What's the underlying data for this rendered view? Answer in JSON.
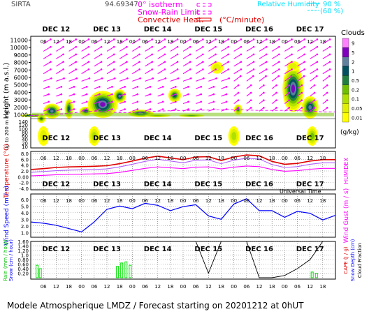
{
  "header": {
    "station": "SIRTA",
    "coord": "94.69347",
    "isotherm_label": "0° isotherm",
    "snow_rain_label": "Snow-Rain Limit",
    "convective_label": "Convective Heat.",
    "convective_unit": "(°C/minute)",
    "rh_label": "Relative Humidity",
    "rh_90": "90 %",
    "rh_60": "(60 %)",
    "clouds_label": "Clouds",
    "cloud_unit": "(g/kg)"
  },
  "days": [
    "DEC 12",
    "DEC 13",
    "DEC 14",
    "DEC 15",
    "DEC 16",
    "DEC 17"
  ],
  "hours": [
    "06",
    "12",
    "18",
    "00"
  ],
  "footer": {
    "universal_time": "Universal Time",
    "caption": "Modele Atmospherique LMDZ / Forecast starting on 20201212 at 0hUT"
  },
  "colors": {
    "pink": "#ff00ff",
    "cyan": "#00e0ff",
    "red": "#e00000",
    "violet": "#b060ff",
    "blue": "#0000ff",
    "green": "#00e000",
    "black": "#000000",
    "cloud_scale": [
      "#ffff00",
      "#e0f000",
      "#b0e000",
      "#70c000",
      "#208040",
      "#005060",
      "#6080a0",
      "#8000c0",
      "#ff80ff"
    ]
  },
  "chart_data": [
    {
      "type": "heatmap",
      "name": "Cloud water and wind vs height",
      "ylabel": "Height (m a.s.l.)",
      "ylabel_low": "Up to 200 m a.g.l.",
      "yticks": [
        1000,
        2000,
        3000,
        4000,
        5000,
        6000,
        7000,
        8000,
        9000,
        10000,
        11000
      ],
      "yticks_low": [
        140,
        120,
        100,
        80,
        60,
        40,
        20,
        10
      ],
      "colorbar_label": "Clouds",
      "colorbar_ticks": [
        "9",
        "5",
        "2",
        "1",
        "0.5",
        "0.2",
        "0.1",
        "0.05",
        "0.01"
      ],
      "colorbar_unit": "(g/kg)",
      "x_start": "2020-12-12 00:00",
      "x_end": "2020-12-17 24:00",
      "clouds": [
        {
          "t": 1.2,
          "z": 900,
          "half_width_h": 6,
          "half_height_m": 200,
          "level": 8
        },
        {
          "t": 5.0,
          "z": 500,
          "half_width_h": 2,
          "half_height_m": 600,
          "level": 4
        },
        {
          "t": 10.0,
          "z": 1500,
          "half_width_h": 4,
          "half_height_m": 1000,
          "level": 6
        },
        {
          "t": 18.0,
          "z": 1800,
          "half_width_h": 2,
          "half_height_m": 1300,
          "level": 5
        },
        {
          "t": 26.0,
          "z": 1500,
          "half_width_h": 3,
          "half_height_m": 600,
          "level": 5
        },
        {
          "t": 34.0,
          "z": 2400,
          "half_width_h": 7,
          "half_height_m": 1800,
          "level": 7
        },
        {
          "t": 42.0,
          "z": 3500,
          "half_width_h": 3,
          "half_height_m": 900,
          "level": 6
        },
        {
          "t": 52.0,
          "z": 1200,
          "half_width_h": 6,
          "half_height_m": 500,
          "level": 6
        },
        {
          "t": 60.0,
          "z": 900,
          "half_width_h": 6,
          "half_height_m": 200,
          "level": 3
        },
        {
          "t": 68.0,
          "z": 3600,
          "half_width_h": 3,
          "half_height_m": 900,
          "level": 5
        },
        {
          "t": 76.0,
          "z": 900,
          "half_width_h": 6,
          "half_height_m": 150,
          "level": 4
        },
        {
          "t": 88.0,
          "z": 7300,
          "half_width_h": 3,
          "half_height_m": 800,
          "level": 1
        },
        {
          "t": 98.0,
          "z": 1700,
          "half_width_h": 2,
          "half_height_m": 700,
          "level": 4
        },
        {
          "t": 124.0,
          "z": 4500,
          "half_width_h": 5,
          "half_height_m": 3100,
          "level": 7
        },
        {
          "t": 124.0,
          "z": 7500,
          "half_width_h": 3,
          "half_height_m": 700,
          "level": 1
        },
        {
          "t": 132.0,
          "z": 2000,
          "half_width_h": 4,
          "half_height_m": 1500,
          "level": 6
        }
      ],
      "low_clouds": [
        {
          "t": 6.0,
          "level": 1
        },
        {
          "t": 30.0,
          "level": 2
        },
        {
          "t": 96.0,
          "level": 2
        },
        {
          "t": 133.0,
          "level": 3
        }
      ],
      "isotherm_m": {
        "t": [
          0,
          6,
          12,
          18,
          24,
          30,
          36,
          42,
          48,
          54,
          60,
          66,
          72,
          78,
          84,
          90,
          96,
          102,
          108,
          114,
          120,
          126,
          132,
          138,
          144
        ],
        "z": [
          900,
          1000,
          1100,
          1200,
          1400,
          1500,
          1400,
          1300,
          1300,
          1400,
          1500,
          1550,
          1600,
          1600,
          1650,
          1700,
          1700,
          1650,
          1600,
          1600,
          1600,
          1550,
          1500,
          1400,
          1400
        ]
      }
    },
    {
      "type": "line",
      "name": "Temperature",
      "ylabel": "Temperature (°C)",
      "ylabel_right": "HUMIDEX",
      "yticks": [
        -4.0,
        -2.0,
        0.0,
        2.0,
        4.0,
        6.0,
        8.0
      ],
      "ylim": [
        -4.0,
        8.0
      ],
      "t": [
        0,
        6,
        12,
        18,
        24,
        30,
        36,
        42,
        48,
        54,
        60,
        66,
        72,
        78,
        84,
        90,
        96,
        102,
        108,
        114,
        120,
        126,
        132,
        138,
        144
      ],
      "series": [
        {
          "name": "",
          "color": "#e00000",
          "values": [
            2.5,
            2.8,
            3.2,
            3.4,
            3.5,
            3.6,
            3.8,
            4.5,
            5.4,
            6.4,
            7.1,
            6.5,
            5.9,
            6.8,
            6.9,
            5.6,
            6.8,
            7.5,
            7.2,
            5.3,
            4.3,
            4.6,
            5.4,
            5.9,
            5.9
          ]
        },
        {
          "name": "",
          "color": "#b060ff",
          "values": [
            1.5,
            1.8,
            2.1,
            2.3,
            2.4,
            2.5,
            2.7,
            3.4,
            4.3,
            5.3,
            6.0,
            5.4,
            4.8,
            5.7,
            5.8,
            4.5,
            5.7,
            6.4,
            6.1,
            4.2,
            3.2,
            3.5,
            4.3,
            4.8,
            4.8
          ]
        },
        {
          "name": "",
          "color": "#ff00ff",
          "values": [
            0.3,
            0.5,
            0.7,
            0.8,
            0.9,
            1.0,
            1.1,
            1.5,
            2.2,
            2.9,
            3.4,
            3.1,
            2.8,
            3.3,
            3.4,
            2.7,
            3.3,
            3.7,
            3.5,
            2.5,
            1.9,
            2.1,
            2.6,
            2.9,
            2.9
          ]
        }
      ]
    },
    {
      "type": "line",
      "name": "Wind speed",
      "ylabel": "Wind Speed (m / s)",
      "ylabel_right": "Wind Gust (m / s)",
      "yticks": [
        1.0,
        2.0,
        3.0,
        4.0,
        5.0,
        6.0
      ],
      "ylim": [
        0.5,
        6.5
      ],
      "t": [
        0,
        6,
        12,
        18,
        24,
        30,
        36,
        42,
        48,
        54,
        60,
        66,
        72,
        78,
        84,
        90,
        96,
        102,
        108,
        114,
        120,
        126,
        132,
        138,
        144
      ],
      "series": [
        {
          "name": "",
          "color": "#0000ff",
          "values": [
            2.6,
            2.4,
            2.1,
            1.6,
            1.1,
            2.6,
            4.5,
            5.0,
            4.6,
            5.4,
            5.1,
            4.3,
            4.9,
            5.2,
            3.5,
            3.0,
            5.3,
            6.1,
            4.3,
            4.3,
            3.3,
            4.2,
            3.9,
            2.9,
            3.6
          ]
        }
      ]
    },
    {
      "type": "line",
      "name": "Precipitation and CAPE",
      "ylabel_left": "Rain (mm / hour)",
      "ylabel_left2": "Snow (cm / hour)",
      "ylabel_right": "CAPE (J / g)",
      "ylabel_right2": "Snow Depth (cm)",
      "ylabel_right3": "Cloud Fraction",
      "yticks": [
        0.2,
        0.4,
        0.6,
        0.8,
        1.0,
        1.2,
        1.4,
        1.6
      ],
      "ylim": [
        0.0,
        1.6
      ],
      "t": [
        0,
        6,
        12,
        18,
        24,
        30,
        36,
        42,
        48,
        54,
        60,
        66,
        72,
        78,
        84,
        90,
        96,
        102,
        108,
        114,
        120,
        126,
        132,
        138,
        144
      ],
      "series": [
        {
          "name": "",
          "color": "#00e000",
          "bars": [
            {
              "t": 3,
              "v": 0.55
            },
            {
              "t": 4.5,
              "v": 0.4
            },
            {
              "t": 41,
              "v": 0.5
            },
            {
              "t": 43,
              "v": 0.65
            },
            {
              "t": 45,
              "v": 0.7
            },
            {
              "t": 47,
              "v": 0.55
            },
            {
              "t": 133,
              "v": 0.25
            },
            {
              "t": 135,
              "v": 0.2
            }
          ]
        },
        {
          "name": "",
          "color": "#000000",
          "values": [
            1.6,
            1.6,
            1.6,
            1.6,
            1.6,
            1.6,
            1.6,
            1.6,
            1.6,
            1.6,
            1.6,
            1.6,
            1.6,
            1.6,
            0.2,
            1.6,
            1.6,
            1.6,
            0.0,
            0.0,
            0.1,
            0.4,
            0.8,
            1.6,
            1.6
          ]
        }
      ]
    }
  ]
}
